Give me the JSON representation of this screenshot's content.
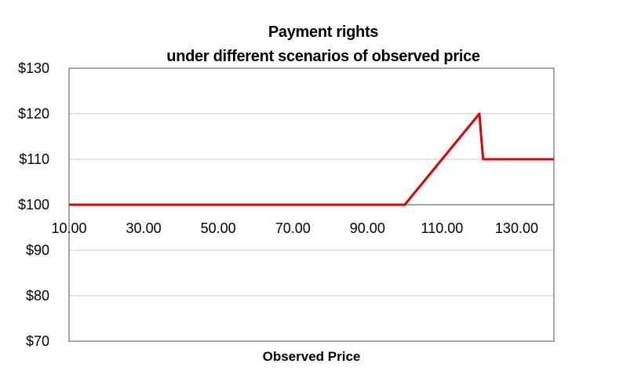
{
  "chart_data": {
    "type": "line",
    "title": "Payment rights",
    "subtitle": "under different scenarios of observed price",
    "xlabel": "Observed Price",
    "ylabel": "",
    "xlim": [
      10,
      140
    ],
    "ylim": [
      70,
      130
    ],
    "x_axis_crosses_y_at": 100,
    "yticks": [
      70,
      80,
      90,
      100,
      110,
      120,
      130
    ],
    "ytick_labels": [
      "$70",
      "$80",
      "$90",
      "$100",
      "$110",
      "$120",
      "$130"
    ],
    "xticks": [
      10,
      30,
      50,
      70,
      90,
      110,
      130
    ],
    "xtick_labels": [
      "10.00",
      "30.00",
      "50.00",
      "70.00",
      "90.00",
      "110.00",
      "130.00"
    ],
    "grid": true,
    "series": [
      {
        "color": "#e00000",
        "x": [
          10,
          100,
          105,
          110,
          115,
          120,
          121,
          140
        ],
        "y": [
          100,
          100,
          105,
          110,
          115,
          120,
          110,
          110
        ]
      }
    ]
  }
}
